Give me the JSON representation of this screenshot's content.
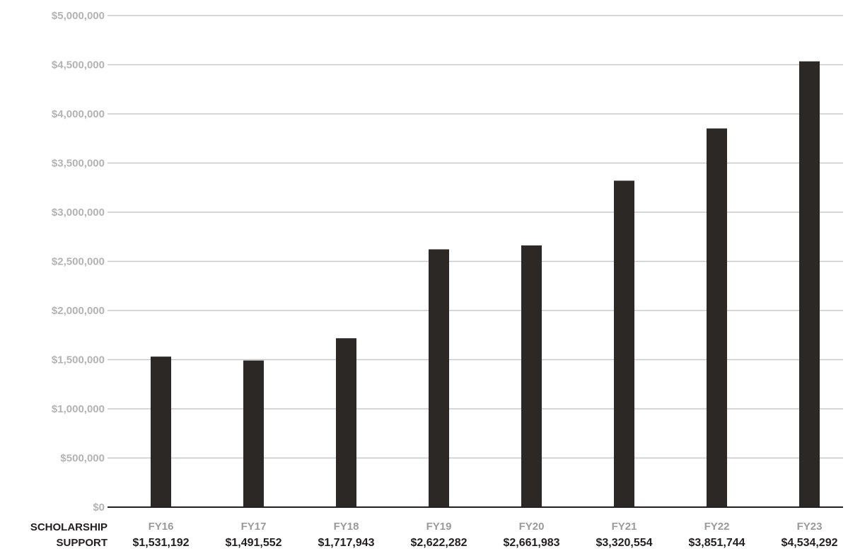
{
  "chart_data": {
    "type": "bar",
    "title": "",
    "xlabel": "",
    "ylabel": "",
    "row_label_line1": "SCHOLARSHIP",
    "row_label_line2": "SUPPORT",
    "categories": [
      "FY16",
      "FY17",
      "FY18",
      "FY19",
      "FY20",
      "FY21",
      "FY22",
      "FY23"
    ],
    "value_labels": [
      "$1,531,192",
      "$1,491,552",
      "$1,717,943",
      "$2,622,282",
      "$2,661,983",
      "$3,320,554",
      "$3,851,744",
      "$4,534,292"
    ],
    "values": [
      1531192,
      1491552,
      1717943,
      2622282,
      2661983,
      3320554,
      3851744,
      4534292
    ],
    "ylim": [
      0,
      5000000
    ],
    "yticks": [
      0,
      500000,
      1000000,
      1500000,
      2000000,
      2500000,
      3000000,
      3500000,
      4000000,
      4500000,
      5000000
    ],
    "ytick_labels": [
      "$0",
      "$500,000",
      "$1,000,000",
      "$1,500,000",
      "$2,000,000",
      "$2,500,000",
      "$3,000,000",
      "$3,500,000",
      "$4,000,000",
      "$4,500,000",
      "$5,000,000"
    ],
    "grid": true,
    "legend": "none",
    "colors": {
      "bar": "#2b2826",
      "grid": "#c8c8c8",
      "axis": "#231f20",
      "ytick_text": "#b3b3b3",
      "xtick_text": "#9a9a9a",
      "value_text": "#231f20"
    }
  }
}
